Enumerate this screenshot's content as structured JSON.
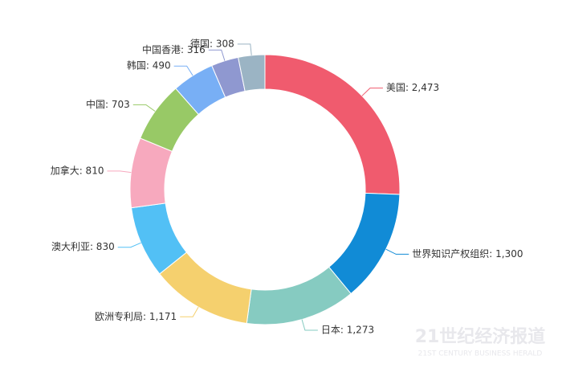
{
  "chart_data": {
    "type": "donut",
    "value_labels": [
      "美国: 2,473",
      "世界知识产权组织: 1,300",
      "日本: 1,273",
      "欧洲专利局: 1,171",
      "澳大利亚: 830",
      "加拿大: 810",
      "中国: 703",
      "韩国: 490",
      "中国香港: 316",
      "德国: 308"
    ],
    "values": [
      2473,
      1300,
      1273,
      1171,
      830,
      810,
      703,
      490,
      316,
      308
    ],
    "colors": [
      "#f05b6e",
      "#118bd6",
      "#86cbc1",
      "#f5d06e",
      "#52c0f5",
      "#f7a9be",
      "#98c966",
      "#78aff5",
      "#8f98d0",
      "#9bb4c4"
    ]
  },
  "watermark": {
    "title": "21世纪经济报道",
    "subtitle": "21ST CENTURY BUSINESS HERALD"
  }
}
